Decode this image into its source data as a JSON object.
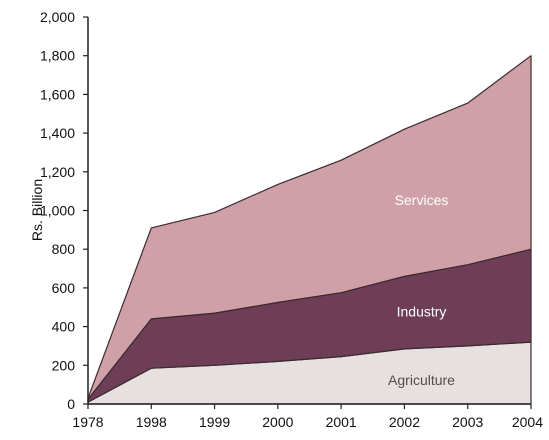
{
  "chart_data": {
    "type": "area",
    "stacked": true,
    "title": "",
    "xlabel": "",
    "ylabel": "Rs. Billion",
    "ylim": [
      0,
      2000
    ],
    "ytick_step": 200,
    "yticks": [
      "0",
      "200",
      "400",
      "600",
      "800",
      "1,000",
      "1,200",
      "1,400",
      "1,600",
      "1,800",
      "2,000"
    ],
    "categories": [
      "1978",
      "1998",
      "1999",
      "2000",
      "2001",
      "2002",
      "2003",
      "2004"
    ],
    "grid": false,
    "legend": "none (series labels drawn inside areas)",
    "series": [
      {
        "name": "Agriculture",
        "color": "#e6e0e1",
        "label_color": "#5a4a4c",
        "values": [
          10,
          185,
          200,
          220,
          245,
          285,
          300,
          320
        ]
      },
      {
        "name": "Industry",
        "color": "#6e3d56",
        "label_color": "#ffffff",
        "values": [
          15,
          255,
          270,
          305,
          330,
          375,
          420,
          480
        ]
      },
      {
        "name": "Services",
        "color": "#d0a0a8",
        "label_color": "#ffffff",
        "values": [
          5,
          470,
          520,
          610,
          685,
          760,
          835,
          1000
        ]
      }
    ]
  }
}
